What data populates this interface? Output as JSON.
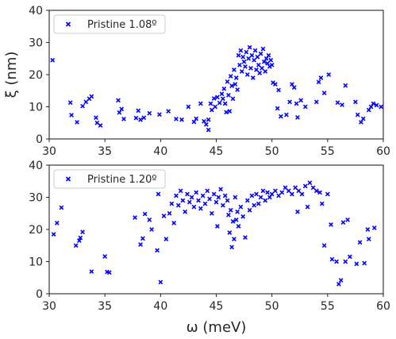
{
  "chart_data": [
    {
      "type": "scatter",
      "xlabel": "",
      "ylabel": "ξ (nm)",
      "xlim": [
        30,
        60
      ],
      "ylim": [
        0,
        40
      ],
      "xticks": [
        "30",
        "35",
        "40",
        "45",
        "50",
        "55",
        "60"
      ],
      "yticks": [
        "0",
        "10",
        "20",
        "30",
        "40"
      ],
      "grid": false,
      "legend_position": "top-left",
      "marker_color": "#0000ff",
      "marker": "x",
      "series": [
        {
          "name": "Pristine 1.08º",
          "points": [
            [
              30.3,
              24.5
            ],
            [
              31.9,
              11.3
            ],
            [
              32.0,
              7.4
            ],
            [
              32.5,
              5.2
            ],
            [
              33.0,
              10.2
            ],
            [
              33.3,
              11.5
            ],
            [
              33.6,
              12.5
            ],
            [
              33.8,
              13.2
            ],
            [
              34.2,
              6.6
            ],
            [
              34.3,
              5.0
            ],
            [
              34.6,
              4.2
            ],
            [
              36.2,
              12.0
            ],
            [
              36.3,
              8.2
            ],
            [
              36.5,
              9.3
            ],
            [
              36.7,
              6.2
            ],
            [
              37.8,
              6.5
            ],
            [
              38.0,
              8.8
            ],
            [
              38.2,
              6.0
            ],
            [
              38.5,
              6.6
            ],
            [
              39.0,
              8.0
            ],
            [
              39.9,
              7.6
            ],
            [
              40.7,
              8.6
            ],
            [
              41.4,
              6.2
            ],
            [
              41.9,
              6.0
            ],
            [
              42.5,
              10.0
            ],
            [
              43.0,
              5.3
            ],
            [
              43.2,
              6.3
            ],
            [
              43.6,
              11.0
            ],
            [
              43.9,
              5.5
            ],
            [
              44.1,
              4.5
            ],
            [
              44.3,
              6.0
            ],
            [
              44.3,
              2.8
            ],
            [
              44.5,
              11.0
            ],
            [
              44.6,
              9.0
            ],
            [
              44.8,
              12.6
            ],
            [
              44.9,
              10.0
            ],
            [
              45.1,
              13.0
            ],
            [
              45.3,
              11.2
            ],
            [
              45.5,
              14.0
            ],
            [
              45.6,
              12.5
            ],
            [
              45.7,
              15.6
            ],
            [
              45.8,
              11.0
            ],
            [
              45.9,
              8.3
            ],
            [
              46.0,
              17.8
            ],
            [
              46.1,
              13.6
            ],
            [
              46.2,
              8.6
            ],
            [
              46.3,
              19.5
            ],
            [
              46.4,
              16.5
            ],
            [
              46.5,
              12.5
            ],
            [
              46.6,
              21.5
            ],
            [
              46.7,
              17.0
            ],
            [
              46.8,
              19.0
            ],
            [
              46.9,
              15.3
            ],
            [
              47.0,
              26.0
            ],
            [
              47.1,
              23.0
            ],
            [
              47.2,
              27.5
            ],
            [
              47.3,
              21.0
            ],
            [
              47.4,
              25.5
            ],
            [
              47.5,
              24.0
            ],
            [
              47.6,
              22.5
            ],
            [
              47.7,
              27.0
            ],
            [
              47.8,
              20.0
            ],
            [
              47.9,
              25.0
            ],
            [
              48.0,
              28.5
            ],
            [
              48.1,
              22.0
            ],
            [
              48.2,
              26.0
            ],
            [
              48.3,
              19.0
            ],
            [
              48.4,
              24.5
            ],
            [
              48.5,
              27.5
            ],
            [
              48.6,
              21.5
            ],
            [
              48.7,
              25.5
            ],
            [
              48.8,
              23.0
            ],
            [
              48.9,
              20.5
            ],
            [
              49.0,
              26.5
            ],
            [
              49.1,
              22.0
            ],
            [
              49.2,
              28.0
            ],
            [
              49.3,
              24.0
            ],
            [
              49.4,
              21.0
            ],
            [
              49.5,
              25.0
            ],
            [
              49.6,
              23.5
            ],
            [
              49.7,
              26.0
            ],
            [
              49.8,
              22.5
            ],
            [
              49.9,
              24.5
            ],
            [
              50.0,
              23.0
            ],
            [
              50.1,
              17.5
            ],
            [
              50.3,
              17.0
            ],
            [
              50.5,
              9.5
            ],
            [
              50.6,
              15.2
            ],
            [
              50.8,
              7.0
            ],
            [
              51.3,
              7.5
            ],
            [
              51.6,
              11.5
            ],
            [
              51.8,
              17.0
            ],
            [
              52.0,
              16.0
            ],
            [
              52.2,
              11.0
            ],
            [
              52.3,
              6.7
            ],
            [
              52.6,
              12.0
            ],
            [
              53.0,
              10.0
            ],
            [
              54.0,
              11.5
            ],
            [
              54.2,
              17.7
            ],
            [
              54.4,
              19.0
            ],
            [
              54.7,
              14.3
            ],
            [
              55.1,
              20.0
            ],
            [
              55.9,
              11.3
            ],
            [
              56.3,
              10.6
            ],
            [
              56.6,
              16.6
            ],
            [
              57.5,
              11.5
            ],
            [
              57.7,
              7.5
            ],
            [
              58.0,
              5.2
            ],
            [
              58.2,
              6.3
            ],
            [
              58.7,
              9.0
            ],
            [
              58.9,
              10.0
            ],
            [
              59.1,
              11.0
            ],
            [
              59.4,
              10.5
            ],
            [
              59.8,
              10.0
            ]
          ]
        }
      ]
    },
    {
      "type": "scatter",
      "xlabel": "ω (meV)",
      "ylabel": "",
      "xlim": [
        30,
        60
      ],
      "ylim": [
        0,
        40
      ],
      "xticks": [
        "30",
        "35",
        "40",
        "45",
        "50",
        "55",
        "60"
      ],
      "yticks": [
        "0",
        "10",
        "20",
        "30",
        "40"
      ],
      "grid": false,
      "legend_position": "top-left",
      "marker_color": "#0000ff",
      "marker": "x",
      "series": [
        {
          "name": "Pristine 1.20º",
          "points": [
            [
              30.4,
              18.5
            ],
            [
              30.7,
              22.0
            ],
            [
              31.1,
              26.8
            ],
            [
              32.4,
              15.0
            ],
            [
              32.7,
              16.5
            ],
            [
              32.8,
              17.4
            ],
            [
              33.0,
              19.2
            ],
            [
              33.8,
              6.9
            ],
            [
              35.0,
              11.6
            ],
            [
              35.2,
              6.8
            ],
            [
              35.4,
              6.6
            ],
            [
              37.3,
              33.5
            ],
            [
              37.7,
              23.7
            ],
            [
              38.2,
              15.3
            ],
            [
              38.4,
              17.2
            ],
            [
              38.6,
              24.8
            ],
            [
              39.0,
              23.0
            ],
            [
              39.2,
              20.0
            ],
            [
              39.7,
              13.5
            ],
            [
              39.8,
              31.0
            ],
            [
              40.0,
              3.6
            ],
            [
              40.3,
              24.2
            ],
            [
              40.5,
              17.0
            ],
            [
              40.8,
              25.0
            ],
            [
              41.0,
              28.0
            ],
            [
              41.2,
              22.0
            ],
            [
              41.4,
              30.5
            ],
            [
              41.6,
              27.5
            ],
            [
              41.8,
              32.0
            ],
            [
              42.0,
              29.0
            ],
            [
              42.2,
              25.5
            ],
            [
              42.4,
              31.0
            ],
            [
              42.6,
              28.5
            ],
            [
              42.8,
              30.0
            ],
            [
              43.0,
              27.0
            ],
            [
              43.2,
              31.5
            ],
            [
              43.4,
              29.0
            ],
            [
              43.6,
              26.5
            ],
            [
              43.8,
              30.5
            ],
            [
              44.0,
              28.0
            ],
            [
              44.2,
              32.0
            ],
            [
              44.4,
              29.5
            ],
            [
              44.6,
              25.0
            ],
            [
              44.8,
              31.0
            ],
            [
              45.0,
              28.5
            ],
            [
              45.1,
              21.0
            ],
            [
              45.2,
              30.0
            ],
            [
              45.4,
              32.5
            ],
            [
              45.6,
              27.5
            ],
            [
              45.8,
              30.5
            ],
            [
              46.0,
              29.0
            ],
            [
              46.1,
              24.5
            ],
            [
              46.2,
              19.0
            ],
            [
              46.3,
              26.0
            ],
            [
              46.4,
              14.5
            ],
            [
              46.5,
              22.5
            ],
            [
              46.6,
              17.0
            ],
            [
              46.7,
              30.0
            ],
            [
              46.8,
              23.0
            ],
            [
              46.9,
              25.5
            ],
            [
              47.0,
              21.0
            ],
            [
              47.2,
              27.0
            ],
            [
              47.4,
              24.0
            ],
            [
              47.6,
              17.5
            ],
            [
              47.8,
              29.0
            ],
            [
              48.0,
              26.0
            ],
            [
              48.2,
              30.5
            ],
            [
              48.4,
              27.5
            ],
            [
              48.6,
              31.0
            ],
            [
              48.8,
              28.0
            ],
            [
              49.0,
              30.0
            ],
            [
              49.2,
              32.0
            ],
            [
              49.4,
              29.0
            ],
            [
              49.6,
              31.5
            ],
            [
              49.8,
              30.0
            ],
            [
              50.0,
              31.0
            ],
            [
              50.3,
              32.0
            ],
            [
              50.6,
              30.5
            ],
            [
              50.9,
              31.5
            ],
            [
              51.2,
              33.0
            ],
            [
              51.5,
              32.0
            ],
            [
              51.8,
              31.0
            ],
            [
              52.1,
              33.0
            ],
            [
              52.3,
              25.5
            ],
            [
              52.4,
              32.0
            ],
            [
              52.7,
              31.0
            ],
            [
              53.0,
              33.5
            ],
            [
              53.2,
              27.0
            ],
            [
              53.4,
              34.5
            ],
            [
              53.7,
              33.0
            ],
            [
              54.0,
              32.0
            ],
            [
              54.3,
              31.5
            ],
            [
              54.5,
              28.0
            ],
            [
              54.7,
              15.0
            ],
            [
              55.0,
              31.0
            ],
            [
              55.3,
              21.5
            ],
            [
              55.4,
              10.7
            ],
            [
              55.8,
              10.0
            ],
            [
              56.0,
              3.0
            ],
            [
              56.2,
              4.2
            ],
            [
              56.4,
              22.2
            ],
            [
              56.6,
              10.0
            ],
            [
              56.8,
              23.0
            ],
            [
              57.0,
              11.5
            ],
            [
              57.6,
              9.3
            ],
            [
              57.9,
              16.0
            ],
            [
              58.3,
              9.5
            ],
            [
              58.6,
              20.0
            ],
            [
              58.7,
              17.0
            ],
            [
              59.2,
              20.5
            ]
          ]
        }
      ]
    }
  ]
}
